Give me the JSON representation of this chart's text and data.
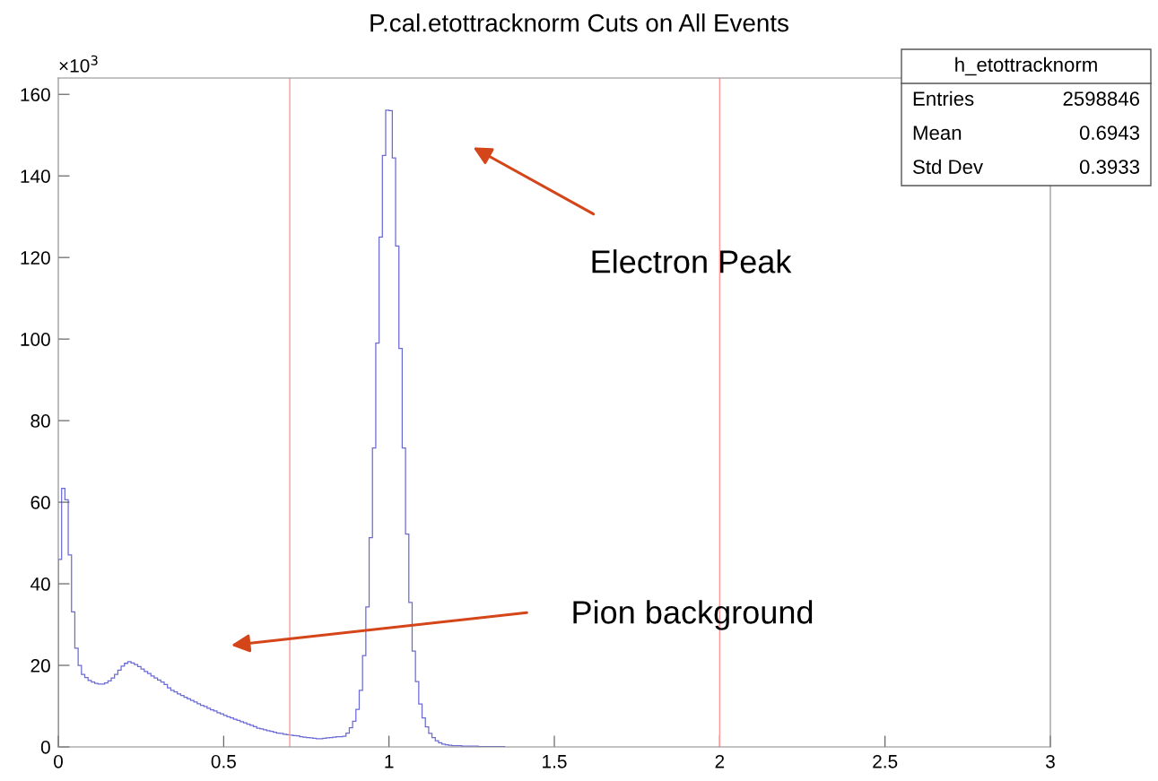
{
  "chart_data": {
    "type": "histogram",
    "title": "P.cal.etottracknorm Cuts on All Events",
    "bins": [
      0,
      0.01,
      0.02,
      0.03,
      0.04,
      0.05,
      0.06,
      0.07,
      0.08,
      0.09,
      0.1,
      0.11,
      0.12,
      0.13,
      0.14,
      0.15,
      0.16,
      0.17,
      0.18,
      0.19,
      0.2,
      0.21,
      0.22,
      0.23,
      0.24,
      0.25,
      0.26,
      0.27,
      0.28,
      0.29,
      0.3,
      0.31,
      0.32,
      0.33,
      0.34,
      0.35,
      0.36,
      0.37,
      0.38,
      0.39,
      0.4,
      0.41,
      0.42,
      0.43,
      0.44,
      0.45,
      0.46,
      0.47,
      0.48,
      0.49,
      0.5,
      0.51,
      0.52,
      0.53,
      0.54,
      0.55,
      0.56,
      0.57,
      0.58,
      0.59,
      0.6,
      0.61,
      0.62,
      0.63,
      0.64,
      0.65,
      0.66,
      0.67,
      0.68,
      0.69,
      0.7,
      0.71,
      0.72,
      0.73,
      0.74,
      0.75,
      0.76,
      0.77,
      0.78,
      0.79,
      0.8,
      0.81,
      0.82,
      0.83,
      0.84,
      0.85,
      0.86,
      0.87,
      0.88,
      0.89,
      0.9,
      0.91,
      0.92,
      0.93,
      0.94,
      0.95,
      0.96,
      0.97,
      0.98,
      0.99,
      1,
      1.01,
      1.02,
      1.03,
      1.04,
      1.05,
      1.06,
      1.07,
      1.08,
      1.09,
      1.1,
      1.11,
      1.12,
      1.13,
      1.14,
      1.15,
      1.16,
      1.17,
      1.18,
      1.19,
      1.2,
      1.21,
      1.22,
      1.23,
      1.24,
      1.25,
      1.26,
      1.27,
      1.28,
      1.29,
      1.3,
      1.31,
      1.32,
      1.33,
      1.34,
      1.35
    ],
    "values": [
      46,
      63.4,
      60.6,
      47.1,
      33.1,
      24.2,
      20.0,
      17.8,
      17.0,
      16.3,
      15.9,
      15.6,
      15.4,
      15.4,
      15.7,
      16.2,
      16.9,
      17.8,
      18.8,
      19.8,
      20.5,
      20.9,
      20.6,
      20.2,
      19.7,
      19.1,
      18.5,
      18.0,
      17.4,
      16.9,
      16.4,
      15.9,
      15.3,
      14.5,
      13.9,
      13.5,
      13.0,
      12.6,
      12.2,
      11.8,
      11.4,
      11.0,
      10.6,
      10.2,
      9.9,
      9.5,
      9.1,
      8.8,
      8.4,
      8.1,
      7.7,
      7.4,
      7.1,
      6.8,
      6.5,
      6.2,
      5.9,
      5.6,
      5.3,
      5.0,
      4.6,
      4.4,
      4.2,
      4.0,
      3.8,
      3.6,
      3.4,
      3.3,
      3.1,
      3.0,
      2.9,
      2.8,
      2.7,
      2.5,
      2.4,
      2.3,
      2.2,
      2.1,
      2.0,
      2.0,
      2.1,
      2.2,
      2.3,
      2.4,
      2.5,
      2.5,
      2.6,
      3.4,
      4.7,
      6.3,
      9.2,
      13.9,
      22.4,
      34.3,
      51.3,
      73.3,
      99,
      125,
      145,
      156.1,
      156,
      144.4,
      122.8,
      97.7,
      73.3,
      52.2,
      35.4,
      23.5,
      16,
      10.5,
      7.1,
      4.9,
      3.3,
      2.3,
      1.5,
      1.0,
      0.7,
      0.5,
      0.4,
      0.3,
      0.3,
      0.3,
      0.2,
      0.2,
      0.2,
      0.2,
      0.2,
      0.1,
      0.1,
      0.1,
      0.1,
      0.1,
      0.1,
      0.1,
      0.1
    ],
    "color": "#6b6bd6",
    "xlim": [
      0,
      3
    ],
    "xticks": [
      0,
      0.5,
      1,
      1.5,
      2,
      2.5,
      3
    ],
    "ylim": [
      0,
      164
    ],
    "yticks": [
      0,
      20,
      40,
      60,
      80,
      100,
      120,
      140,
      160
    ],
    "grid": false,
    "legend": false,
    "ref_lines": [
      {
        "axis": "x",
        "value": 0.7,
        "label": null,
        "color": "#ff9999"
      },
      {
        "axis": "x",
        "value": 2,
        "label": null,
        "color": "#ff9999"
      }
    ],
    "annotations": [
      "Electron Peak",
      "Pion background",
      "×10$^{3}$",
      "h_etottracknorm",
      "Entries",
      "2598846",
      "Mean",
      "0.6943",
      "Std Dev",
      "0.3933"
    ]
  }
}
